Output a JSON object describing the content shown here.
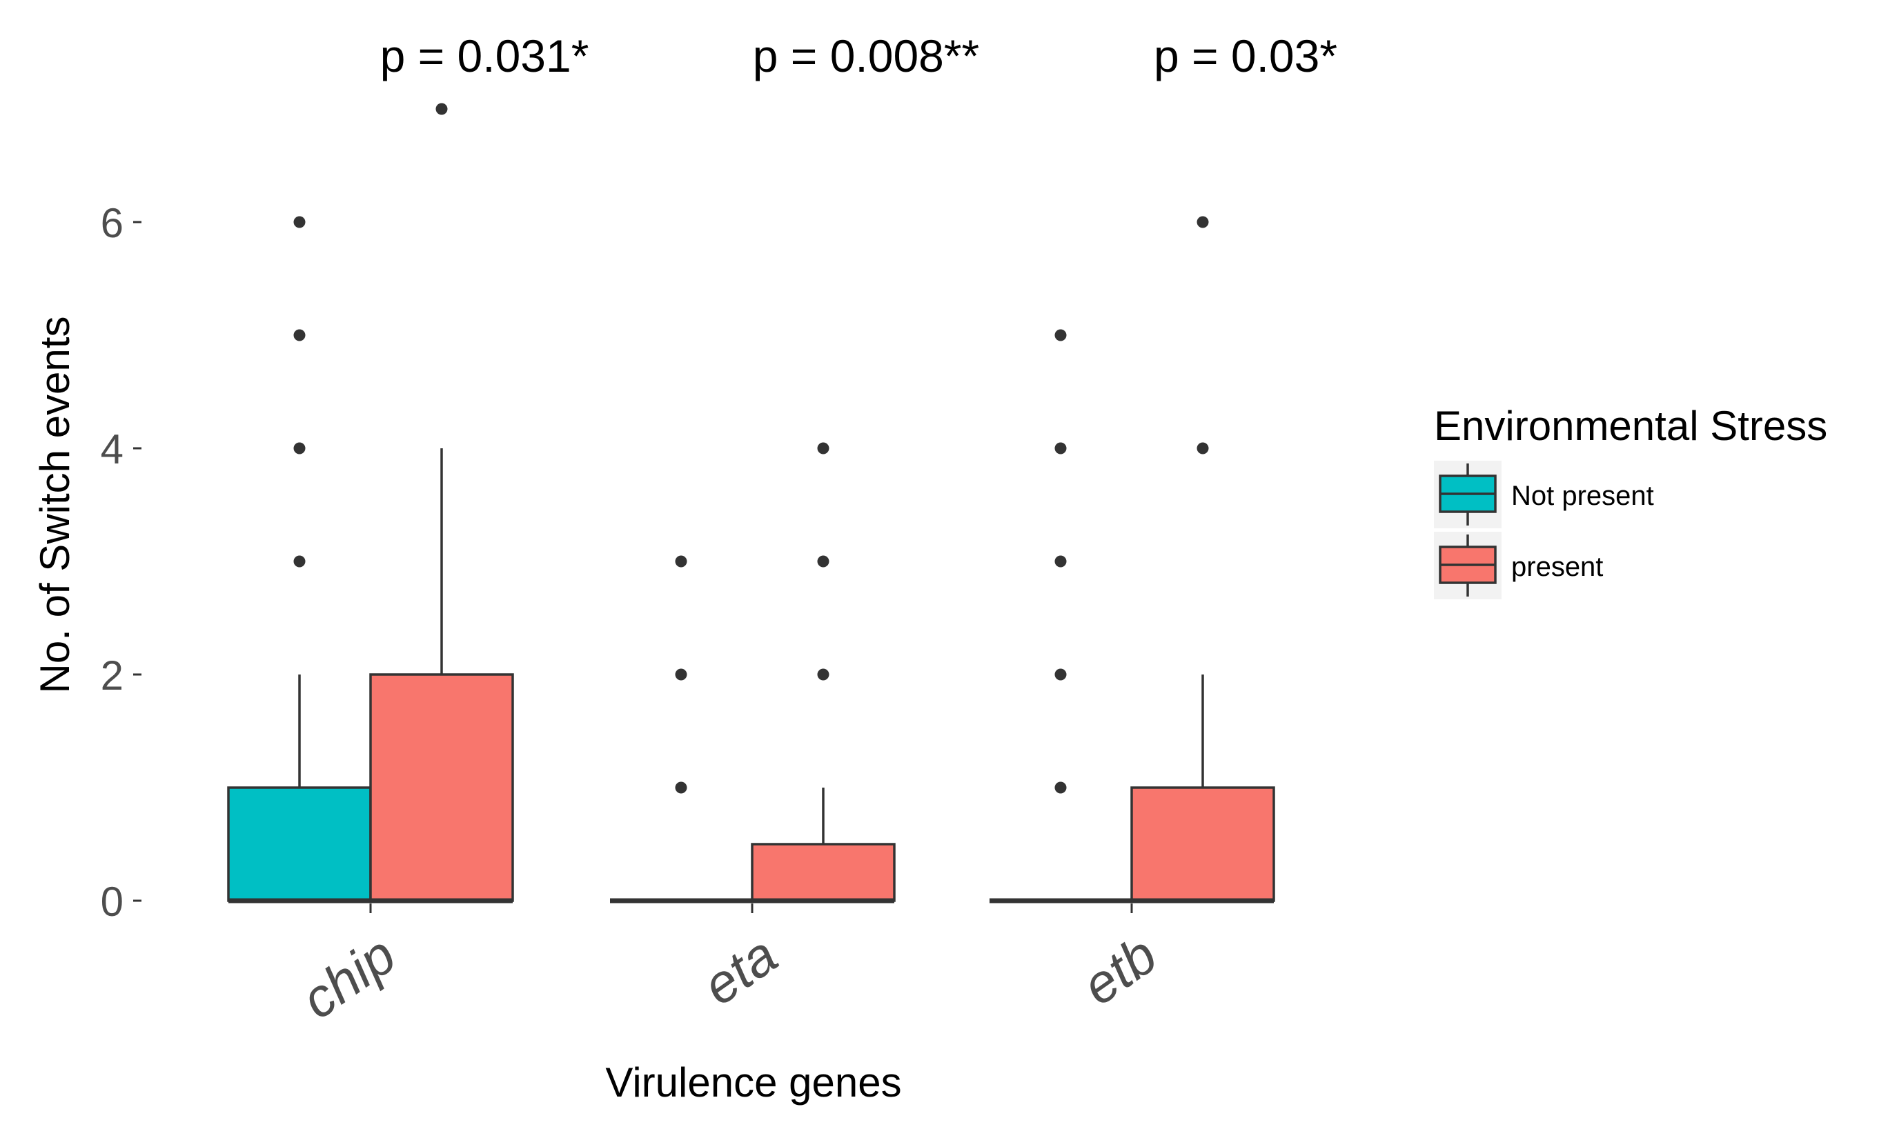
{
  "chart_data": {
    "type": "boxplot",
    "title": "",
    "xlabel": "Virulence genes",
    "ylabel": "No. of Switch events",
    "ylim": [
      0,
      7
    ],
    "yticks": [
      0,
      2,
      4,
      6
    ],
    "categories": [
      "chip",
      "eta",
      "etb"
    ],
    "legend": {
      "title": "Environmental Stress",
      "position": "right",
      "entries": [
        {
          "name": "Not present",
          "color": "#00BFC4"
        },
        {
          "name": "present",
          "color": "#F8766D"
        }
      ]
    },
    "annotations": [
      "p = 0.031*",
      "p = 0.008**",
      "p = 0.03*"
    ],
    "series": [
      {
        "name": "Not present",
        "color": "#00BFC4",
        "boxes": [
          {
            "category": "chip",
            "min": 0,
            "q1": 0,
            "median": 0,
            "q3": 1,
            "max": 2,
            "outliers": [
              3,
              4,
              5,
              6
            ]
          },
          {
            "category": "eta",
            "min": 0,
            "q1": 0,
            "median": 0,
            "q3": 0,
            "max": 0,
            "outliers": [
              1,
              2,
              3
            ]
          },
          {
            "category": "etb",
            "min": 0,
            "q1": 0,
            "median": 0,
            "q3": 0,
            "max": 0,
            "outliers": [
              1,
              2,
              3,
              4,
              5
            ]
          }
        ]
      },
      {
        "name": "present",
        "color": "#F8766D",
        "boxes": [
          {
            "category": "chip",
            "min": 0,
            "q1": 0,
            "median": 0,
            "q3": 2,
            "max": 4,
            "outliers": [
              7
            ]
          },
          {
            "category": "eta",
            "min": 0,
            "q1": 0,
            "median": 0,
            "q3": 0.5,
            "max": 1,
            "outliers": [
              2,
              3,
              4
            ]
          },
          {
            "category": "etb",
            "min": 0,
            "q1": 0,
            "median": 0,
            "q3": 1,
            "max": 2,
            "outliers": [
              4,
              6
            ]
          }
        ]
      }
    ]
  }
}
